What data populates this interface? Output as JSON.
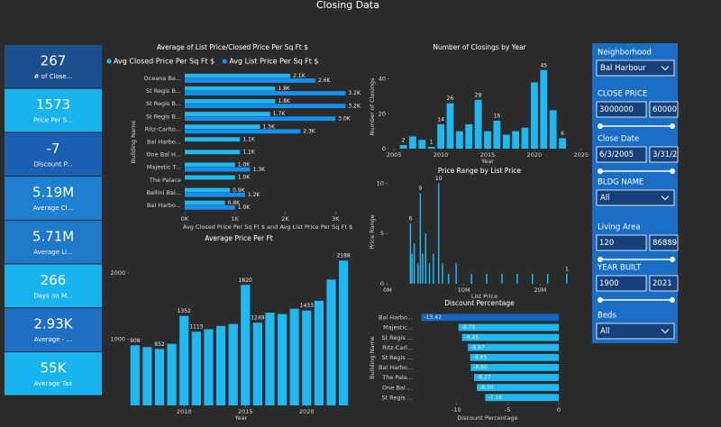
{
  "title": "Closing Data",
  "kpis": [
    {
      "value": "267",
      "label": "# of Close...",
      "color": "#1c4f8f"
    },
    {
      "value": "1573",
      "label": "Price Per S...",
      "color": "#17b4ef"
    },
    {
      "value": "-7",
      "label": "Discount P...",
      "color": "#1b60b3"
    },
    {
      "value": "5.19M",
      "label": "Average Cl...",
      "color": "#1f7fd0"
    },
    {
      "value": "5.71M",
      "label": "Average Li...",
      "color": "#1f78c8"
    },
    {
      "value": "266",
      "label": "Days on M...",
      "color": "#17b4ef"
    },
    {
      "value": "2.93K",
      "label": "Average - ...",
      "color": "#1f6fc4"
    },
    {
      "value": "55K",
      "label": "Average Tax",
      "color": "#17b4ef"
    }
  ],
  "chart_data": [
    {
      "type": "bar",
      "orientation": "horizontal",
      "title": "Average of List Price/Closed Price Per Sq Ft $",
      "x_label": "Avg Closed Price Per Sq Ft $ and Avg List Price Per Sq Ft $",
      "y_label": "Building Name",
      "legend": "top-left",
      "categories": [
        "Oceana Ba...",
        "St Regis B...",
        "St Regis B...",
        "St Regis B...",
        "Ritz-Carlto...",
        "Bal Harbo...",
        "One Bal H...",
        "Majestic T...",
        "The Palace",
        "Bellini Bal...",
        "Bal Harbo..."
      ],
      "series": [
        {
          "name": "Avg Closed Price Per Sq Ft $",
          "color": "#1fb8f0",
          "values": [
            2100,
            1800,
            1800,
            1700,
            1500,
            1100,
            1100,
            1000,
            1000,
            900,
            800
          ],
          "value_labels": [
            "2.1K",
            "1.8K",
            "1.8K",
            "1.7K",
            "1.5K",
            "1.1K",
            "1.1K",
            "1.0K",
            "1.0K",
            "0.9K",
            "0.8K"
          ]
        },
        {
          "name": "Avg List Price Per Sq Ft $",
          "color": "#1490f0",
          "values": [
            2600,
            3200,
            3200,
            3000,
            2300,
            null,
            null,
            1300,
            null,
            1200,
            1000
          ],
          "value_labels": [
            "2.6K",
            "3.2K",
            "3.2K",
            "3.0K",
            "2.3K",
            null,
            null,
            "1.3K",
            null,
            "1.2K",
            "1.0K"
          ]
        }
      ],
      "xlim": [
        0,
        3300
      ],
      "xticks": [
        {
          "value": 0,
          "label": "0K"
        },
        {
          "value": 1000,
          "label": "1K"
        },
        {
          "value": 2000,
          "label": "2K"
        },
        {
          "value": 3000,
          "label": "3K"
        }
      ]
    },
    {
      "type": "bar",
      "orientation": "vertical",
      "title": "Average Price Per Ft",
      "x_label": "Year",
      "x": [
        2006,
        2007,
        2008,
        2009,
        2010,
        2011,
        2012,
        2013,
        2014,
        2015,
        2016,
        2017,
        2018,
        2019,
        2020,
        2021,
        2022,
        2023
      ],
      "series": [
        {
          "name": "Average Price Per Ft",
          "color": "#1fb8f0",
          "values": [
            908,
            880,
            852,
            930,
            1352,
            1113,
            1150,
            1200,
            1230,
            1820,
            1249,
            1400,
            1380,
            1460,
            1433,
            1580,
            1900,
            2188
          ],
          "value_labels": [
            908,
            null,
            852,
            null,
            1352,
            1113,
            null,
            null,
            null,
            1820,
            1249,
            null,
            null,
            null,
            1433,
            null,
            null,
            2188
          ]
        }
      ],
      "xlim": [
        2005.5,
        2023.8
      ],
      "xticks": [
        2010,
        2015,
        2020
      ],
      "ylim": [
        0,
        2300
      ],
      "yticks": [
        1000,
        2000
      ]
    },
    {
      "type": "bar",
      "orientation": "vertical",
      "title": "Number of Closings by Year",
      "x_label": "Year",
      "y_label": "Number of Closings",
      "x": [
        2006,
        2007,
        2008,
        2009,
        2010,
        2011,
        2012,
        2013,
        2014,
        2015,
        2016,
        2017,
        2018,
        2019,
        2020,
        2021,
        2022,
        2023
      ],
      "series": [
        {
          "name": "Number of Closings",
          "color": "#1fb8f0",
          "values": [
            2,
            7,
            5,
            1,
            14,
            26,
            10,
            14,
            28,
            10,
            16,
            8,
            10,
            12,
            38,
            45,
            22,
            6
          ],
          "value_labels": [
            2,
            null,
            null,
            1,
            14,
            26,
            null,
            null,
            28,
            null,
            16,
            null,
            null,
            null,
            null,
            45,
            null,
            6
          ]
        }
      ],
      "xlim": [
        2004.5,
        2025.5
      ],
      "xticks": [
        2005,
        2010,
        2015,
        2020,
        2025
      ],
      "ylim": [
        0,
        48
      ],
      "yticks": [
        0,
        20,
        40
      ]
    },
    {
      "type": "bar",
      "orientation": "vertical",
      "title": "Price Range by List Price",
      "x_label": "List Price",
      "y_label": "Price Range",
      "x": [
        3000000,
        3200000,
        3500000,
        4000000,
        4300000,
        4600000,
        5000000,
        5500000,
        6000000,
        6700000,
        7200000,
        8000000,
        9000000,
        11000000,
        13000000,
        15000000,
        17000000,
        19000000,
        21000000,
        23500000
      ],
      "series": [
        {
          "name": "Price Range",
          "color": "#1fb8f0",
          "values": [
            6,
            3,
            4,
            2,
            9,
            3,
            5,
            2,
            3,
            10,
            2,
            1,
            2,
            1,
            1,
            1,
            1,
            1,
            1,
            1
          ],
          "value_labels": [
            6,
            null,
            null,
            null,
            9,
            null,
            null,
            null,
            null,
            10,
            null,
            null,
            null,
            null,
            null,
            null,
            null,
            null,
            null,
            1
          ]
        }
      ],
      "xlim": [
        0,
        25400000
      ],
      "xticks": [
        {
          "value": 0,
          "label": "0M"
        },
        {
          "value": 10000000,
          "label": "10M"
        },
        {
          "value": 20000000,
          "label": "20M"
        }
      ],
      "ylim": [
        0,
        10.3
      ],
      "yticks": [
        0,
        5,
        10
      ]
    },
    {
      "type": "bar",
      "orientation": "horizontal",
      "title": "Discount Percentage",
      "x_label": "Discount Percentage",
      "y_label": "Building Name",
      "categories": [
        "Bal Harbo...",
        "Majestic...",
        "St Regis ...",
        "Ritz-Carl...",
        "St Regis ...",
        "Bal Harbo...",
        "The Pala...",
        "One Bal ...",
        "St Regis ..."
      ],
      "values": [
        -13.42,
        -9.79,
        -9.45,
        -8.87,
        -8.65,
        -8.6,
        -8.27,
        -8.0,
        -7.18
      ],
      "value_labels": [
        "-13.42",
        "-9.79",
        "-9.45",
        "-8.87",
        "-8.65",
        "-8.60",
        "-8.27",
        "-8.00",
        "-7.18"
      ],
      "color": "#1fb8f0",
      "colors": [
        "#1565c0",
        "#1fb8f0",
        "#1fb8f0",
        "#1fb8f0",
        "#1fb8f0",
        "#1fb8f0",
        "#1fb8f0",
        "#1fb8f0",
        "#1fb8f0"
      ],
      "xlim": [
        -13.9,
        0
      ],
      "xticks": [
        -10,
        -5,
        0
      ]
    }
  ],
  "slicers": [
    {
      "title": "Neighborhood",
      "kind": "dropdown",
      "value": "Bal Harbour"
    },
    {
      "title": "CLOSE PRICE",
      "kind": "range",
      "values": [
        "3000000",
        "60000"
      ]
    },
    {
      "title": "Close Date",
      "kind": "range",
      "values": [
        "6/3/2005",
        "3/31/2"
      ]
    },
    {
      "title": "BLDG NAME",
      "kind": "dropdown",
      "value": "All"
    },
    {
      "title": "Living Area",
      "kind": "range",
      "values": [
        "120",
        "86889"
      ]
    },
    {
      "title": "YEAR BUILT",
      "kind": "range",
      "values": [
        "1900",
        "2021"
      ]
    },
    {
      "title": "Beds",
      "kind": "dropdown",
      "value": "All"
    }
  ]
}
